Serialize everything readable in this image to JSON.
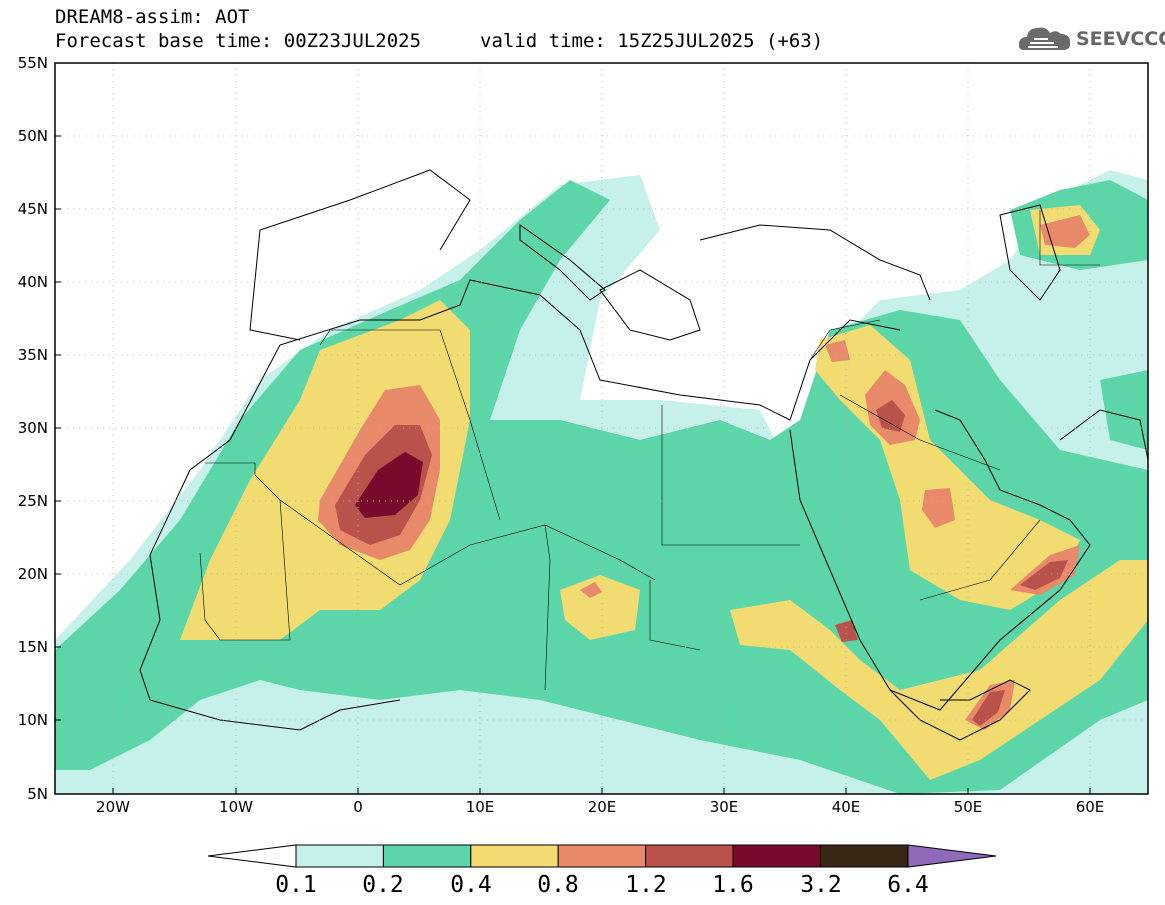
{
  "header": {
    "title": "DREAM8-assim: AOT",
    "base_time": "Forecast base time: 00Z23JUL2025",
    "valid_time": "valid time: 15Z25JUL2025 (+63)",
    "logo_text": "SEEVCCC"
  },
  "map": {
    "lat_labels": [
      "55N",
      "50N",
      "45N",
      "40N",
      "35N",
      "30N",
      "25N",
      "20N",
      "15N",
      "10N",
      "5N"
    ],
    "lon_labels": [
      "20W",
      "10W",
      "0",
      "10E",
      "20E",
      "30E",
      "40E",
      "50E",
      "60E"
    ]
  },
  "legend": {
    "labels": [
      "0.1",
      "0.2",
      "0.4",
      "0.8",
      "1.2",
      "1.6",
      "3.2",
      "6.4"
    ],
    "colors": [
      "#c6f0ea",
      "#5cd6a8",
      "#f2dc72",
      "#e8896a",
      "#b8524a",
      "#7a0a2c",
      "#3a2614",
      "#8e6ab8"
    ]
  },
  "colors": {
    "c1": "#c6f0ea",
    "c2": "#5cd6a8",
    "c3": "#f2dc72",
    "c4": "#e8896a",
    "c5": "#b8524a",
    "c6": "#7a0a2c"
  }
}
